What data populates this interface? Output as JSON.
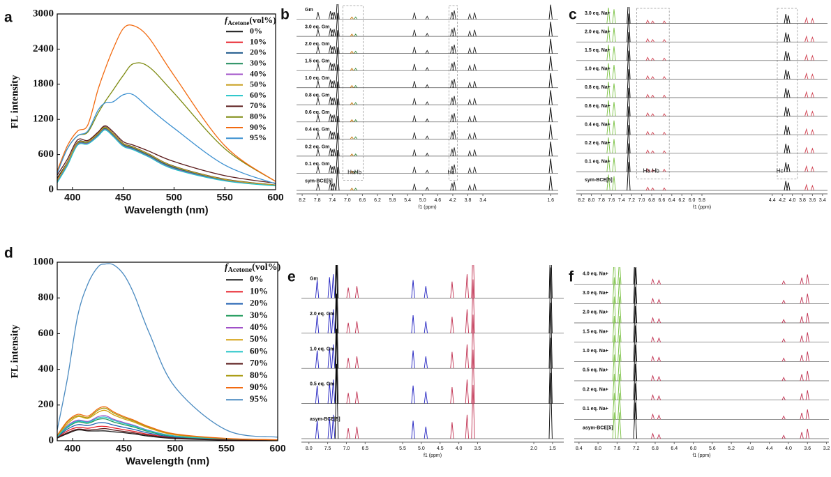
{
  "chart_data": [
    {
      "type": "line",
      "panel": "a",
      "xlabel": "Wavelength (nm)",
      "ylabel": "FL intensity",
      "legend_title": {
        "symbol": "f",
        "subscript": "Acetone",
        "unit": "(vol%)"
      },
      "x": [
        385,
        395,
        405,
        415,
        425,
        432,
        440,
        450,
        460,
        475,
        500,
        550,
        600
      ],
      "xlim": [
        385,
        600
      ],
      "xticks": [
        400,
        450,
        500,
        550,
        600
      ],
      "ylim": [
        0,
        3000
      ],
      "yticks": [
        0,
        600,
        1200,
        1800,
        2400,
        3000
      ],
      "series": [
        {
          "name": "0%",
          "color": "#1a1a1a",
          "values": [
            200,
            470,
            810,
            820,
            960,
            1070,
            960,
            790,
            730,
            610,
            400,
            180,
            80
          ]
        },
        {
          "name": "10%",
          "color": "#e8202a",
          "values": [
            170,
            450,
            800,
            810,
            950,
            1060,
            950,
            780,
            720,
            600,
            390,
            170,
            75
          ]
        },
        {
          "name": "20%",
          "color": "#1f5a8c",
          "values": [
            150,
            440,
            790,
            800,
            940,
            1050,
            940,
            770,
            710,
            590,
            380,
            165,
            72
          ]
        },
        {
          "name": "30%",
          "color": "#1f8a5a",
          "values": [
            140,
            430,
            780,
            800,
            930,
            1040,
            930,
            760,
            700,
            580,
            370,
            160,
            70
          ]
        },
        {
          "name": "40%",
          "color": "#a050c8",
          "values": [
            130,
            420,
            770,
            790,
            920,
            1030,
            920,
            750,
            690,
            570,
            360,
            155,
            68
          ]
        },
        {
          "name": "50%",
          "color": "#c8a020",
          "values": [
            160,
            460,
            800,
            815,
            955,
            1065,
            955,
            785,
            725,
            605,
            395,
            175,
            78
          ]
        },
        {
          "name": "60%",
          "color": "#22c4c8",
          "values": [
            120,
            410,
            760,
            780,
            910,
            1020,
            910,
            740,
            680,
            560,
            350,
            150,
            65
          ]
        },
        {
          "name": "70%",
          "color": "#5a1a1a",
          "values": [
            250,
            520,
            850,
            840,
            980,
            1090,
            990,
            820,
            760,
            660,
            480,
            240,
            110
          ]
        },
        {
          "name": "80%",
          "color": "#7d8a10",
          "values": [
            300,
            700,
            920,
            980,
            1300,
            1500,
            1700,
            1950,
            2150,
            2100,
            1650,
            700,
            140
          ]
        },
        {
          "name": "90%",
          "color": "#f26a10",
          "values": [
            320,
            750,
            1000,
            1100,
            1700,
            2050,
            2400,
            2750,
            2800,
            2600,
            1950,
            750,
            140
          ]
        },
        {
          "name": "95%",
          "color": "#3a8fd0",
          "values": [
            280,
            700,
            920,
            1000,
            1350,
            1480,
            1500,
            1620,
            1620,
            1400,
            1050,
            420,
            100
          ]
        }
      ]
    },
    {
      "type": "nmr",
      "panel": "b",
      "xlabel": "f1 (ppm)",
      "xlim": [
        8.35,
        1.4
      ],
      "xticks": [
        8.2,
        7.8,
        7.4,
        {
          "value": 7,
          "label": "7.0"
        },
        6.6,
        6.2,
        5.8,
        5.4,
        {
          "value": 5,
          "label": "5.0"
        },
        4.6,
        4.2,
        3.8,
        3.4,
        1.6
      ],
      "rows": [
        "Gm",
        "3.0 eq. Gm",
        "2.0 eq. Gm",
        "1.5 eq. Gm",
        "1.0 eq. Gm",
        "0.8 eq. Gm",
        "0.6 eq. Gm",
        "0.4 eq. Gm",
        "0.2 eq. Gm",
        "0.1 eq. Gm",
        "sym-BCE[5]"
      ],
      "peaks": [
        {
          "ppm": 7.78,
          "height": 0.5,
          "color": "#222222"
        },
        {
          "ppm": 7.45,
          "height": 0.55,
          "color": "#222222"
        },
        {
          "ppm": 7.4,
          "height": 0.45,
          "color": "#222222"
        },
        {
          "ppm": 7.35,
          "height": 0.5,
          "color": "#222222"
        },
        {
          "ppm": 7.26,
          "height": 1.6,
          "color": "#000000"
        },
        {
          "ppm": 6.88,
          "height": 0.15,
          "color": "#c07000"
        },
        {
          "ppm": 6.78,
          "height": 0.15,
          "color": "#3a8a3a"
        },
        {
          "ppm": 5.22,
          "height": 0.45,
          "color": "#222222"
        },
        {
          "ppm": 4.88,
          "height": 0.2,
          "color": "#222222"
        },
        {
          "ppm": 4.22,
          "height": 0.5,
          "color": "#222222"
        },
        {
          "ppm": 4.16,
          "height": 0.6,
          "color": "#222222"
        },
        {
          "ppm": 3.75,
          "height": 0.35,
          "color": "#222222"
        },
        {
          "ppm": 3.62,
          "height": 0.45,
          "color": "#222222"
        },
        {
          "ppm": 1.6,
          "height": 1.0,
          "color": "#000000"
        }
      ],
      "annotations": [
        {
          "text": "Ha",
          "ppm": 6.9
        },
        {
          "text": "Hb",
          "ppm": 6.72
        },
        {
          "text": "Hc",
          "ppm": 4.25
        }
      ],
      "boxes": [
        [
          7.12,
          6.58
        ],
        [
          4.3,
          4.08
        ]
      ]
    },
    {
      "type": "nmr",
      "panel": "c",
      "xlabel": "f1 (ppm)",
      "xlim": [
        8.3,
        3.3
      ],
      "xticks": [
        8.2,
        {
          "value": 8,
          "label": "8.0"
        },
        7.8,
        7.6,
        7.4,
        7.2,
        {
          "value": 7,
          "label": "7.0"
        },
        6.8,
        6.6,
        6.4,
        6.2,
        {
          "value": 6,
          "label": "6.0"
        },
        5.8,
        4.4,
        4.2,
        {
          "value": 4,
          "label": "4.0"
        },
        3.8,
        3.6,
        3.4
      ],
      "rows": [
        "3.0 eq. Na+",
        "2.0 eq. Na+",
        "1.5 eq. Na+",
        "1.0 eq. Na+",
        "0.8 eq. Na+",
        "0.6 eq. Na+",
        "0.4 eq. Na+",
        "0.2 eq. Na+",
        "0.1 eq. Na+",
        "sym-BCE[5]"
      ],
      "peaks": [
        {
          "ppm": 7.66,
          "height": 1.0,
          "color": "#7ac143"
        },
        {
          "ppm": 7.55,
          "height": 0.9,
          "color": "#7ac143"
        },
        {
          "ppm": 7.26,
          "height": 1.8,
          "color": "#000000"
        },
        {
          "ppm": 6.88,
          "height": 0.2,
          "color": "#d04050"
        },
        {
          "ppm": 6.78,
          "height": 0.15,
          "color": "#d04050"
        },
        {
          "ppm": 6.55,
          "height": 0.15,
          "color": "#d04050"
        },
        {
          "ppm": 4.13,
          "height": 0.6,
          "color": "#000000"
        },
        {
          "ppm": 4.08,
          "height": 0.5,
          "color": "#000000"
        },
        {
          "ppm": 3.72,
          "height": 0.35,
          "color": "#d04050"
        },
        {
          "ppm": 3.6,
          "height": 0.3,
          "color": "#d04050"
        }
      ],
      "annotations": [
        {
          "text": "Ha",
          "ppm": 6.9
        },
        {
          "text": "Hb",
          "ppm": 6.72
        },
        {
          "text": "Hc",
          "ppm": 4.25
        }
      ],
      "boxes": [
        [
          7.1,
          6.45
        ],
        [
          4.3,
          3.9
        ]
      ]
    },
    {
      "type": "line",
      "panel": "d",
      "xlabel": "Wavelength (nm)",
      "ylabel": "FL intensity",
      "legend_title": {
        "symbol": "f",
        "subscript": "Acetone",
        "unit": "(vol%)"
      },
      "x": [
        385,
        395,
        405,
        415,
        425,
        432,
        440,
        450,
        460,
        475,
        500,
        550,
        600
      ],
      "xlim": [
        385,
        600
      ],
      "xticks": [
        400,
        450,
        500,
        550,
        600
      ],
      "ylim": [
        0,
        1000
      ],
      "yticks": [
        0,
        200,
        400,
        600,
        800,
        1000
      ],
      "series": [
        {
          "name": "0%",
          "color": "#1a1a1a",
          "values": [
            15,
            40,
            60,
            55,
            55,
            55,
            50,
            45,
            38,
            25,
            12,
            4,
            2
          ]
        },
        {
          "name": "10%",
          "color": "#e8202a",
          "values": [
            18,
            55,
            75,
            70,
            80,
            80,
            72,
            62,
            52,
            35,
            17,
            6,
            3
          ]
        },
        {
          "name": "20%",
          "color": "#1f5fb0",
          "values": [
            20,
            65,
            90,
            85,
            100,
            100,
            88,
            75,
            63,
            42,
            20,
            7,
            3
          ]
        },
        {
          "name": "30%",
          "color": "#1f9a5a",
          "values": [
            22,
            75,
            105,
            98,
            120,
            122,
            105,
            90,
            76,
            50,
            24,
            8,
            4
          ]
        },
        {
          "name": "40%",
          "color": "#a050c8",
          "values": [
            24,
            85,
            115,
            108,
            135,
            140,
            120,
            102,
            86,
            57,
            27,
            9,
            4
          ]
        },
        {
          "name": "50%",
          "color": "#d4a010",
          "values": [
            26,
            95,
            135,
            125,
            160,
            170,
            145,
            122,
            104,
            70,
            33,
            11,
            5
          ]
        },
        {
          "name": "60%",
          "color": "#22c4c8",
          "values": [
            23,
            80,
            110,
            104,
            128,
            132,
            114,
            97,
            82,
            55,
            26,
            9,
            4
          ]
        },
        {
          "name": "70%",
          "color": "#5a1a1a",
          "values": [
            17,
            45,
            65,
            60,
            65,
            68,
            60,
            52,
            44,
            30,
            15,
            5,
            2
          ]
        },
        {
          "name": "80%",
          "color": "#a89a10",
          "values": [
            28,
            105,
            140,
            130,
            172,
            182,
            155,
            130,
            110,
            75,
            36,
            12,
            5
          ]
        },
        {
          "name": "90%",
          "color": "#f26a10",
          "values": [
            30,
            110,
            148,
            138,
            180,
            190,
            162,
            136,
            115,
            78,
            38,
            13,
            5
          ]
        },
        {
          "name": "95%",
          "color": "#4a8ac0",
          "values": [
            60,
            350,
            700,
            880,
            975,
            990,
            985,
            930,
            820,
            600,
            300,
            60,
            20
          ]
        }
      ]
    },
    {
      "type": "nmr",
      "panel": "e",
      "xlabel": "f1 (ppm)",
      "xlim": [
        8.2,
        1.2
      ],
      "xticks": [
        {
          "value": 8,
          "label": "8.0"
        },
        7.5,
        {
          "value": 7,
          "label": "7.0"
        },
        6.5,
        5.5,
        {
          "value": 5,
          "label": "5.0"
        },
        4.5,
        {
          "value": 4,
          "label": "4.0"
        },
        3.5,
        {
          "value": 2,
          "label": "2.0"
        },
        1.5
      ],
      "rows": [
        "Gm",
        "2.0 eq. Gm",
        "1.0 eq. Gm",
        "0.5 eq. Gm",
        "asym-BCE[5]"
      ],
      "peaks": [
        {
          "ppm": 7.78,
          "height": 0.6,
          "color": "#2020c0"
        },
        {
          "ppm": 7.45,
          "height": 0.7,
          "color": "#2020c0"
        },
        {
          "ppm": 7.35,
          "height": 0.8,
          "color": "#2020c0"
        },
        {
          "ppm": 7.26,
          "height": 2.5,
          "color": "#000000"
        },
        {
          "ppm": 6.95,
          "height": 0.35,
          "color": "#c03050"
        },
        {
          "ppm": 6.72,
          "height": 0.4,
          "color": "#c03050"
        },
        {
          "ppm": 5.22,
          "height": 0.6,
          "color": "#2020c0"
        },
        {
          "ppm": 4.88,
          "height": 0.4,
          "color": "#2020c0"
        },
        {
          "ppm": 4.18,
          "height": 0.55,
          "color": "#c03050"
        },
        {
          "ppm": 3.78,
          "height": 0.8,
          "color": "#c03050"
        },
        {
          "ppm": 3.62,
          "height": 1.8,
          "color": "#c03050"
        },
        {
          "ppm": 1.55,
          "height": 2.2,
          "color": "#000000"
        }
      ]
    },
    {
      "type": "nmr",
      "panel": "f",
      "xlabel": "f1 (ppm)",
      "xlim": [
        8.5,
        3.15
      ],
      "xticks": [
        8.4,
        {
          "value": 8,
          "label": "8.0"
        },
        7.6,
        7.2,
        6.8,
        6.4,
        {
          "value": 6,
          "label": "6.0"
        },
        5.6,
        5.2,
        4.8,
        4.4,
        {
          "value": 4,
          "label": "4.0"
        },
        3.6,
        3.2
      ],
      "rows": [
        "4.0 eq. Na+",
        "3.0 eq. Na+",
        "2.0 eq. Na+",
        "1.5 eq. Na+",
        "1.0 eq. Na+",
        "0.5 eq. Na+",
        "0.2 eq. Na+",
        "0.1 eq. Na+",
        "asym-BCE[5]"
      ],
      "peaks": [
        {
          "ppm": 7.66,
          "height": 1.6,
          "color": "#7ac143"
        },
        {
          "ppm": 7.55,
          "height": 1.6,
          "color": "#7ac143"
        },
        {
          "ppm": 7.22,
          "height": 2.2,
          "color": "#000000"
        },
        {
          "ppm": 6.85,
          "height": 0.3,
          "color": "#c03050"
        },
        {
          "ppm": 6.72,
          "height": 0.25,
          "color": "#c03050"
        },
        {
          "ppm": 4.1,
          "height": 0.2,
          "color": "#c03050"
        },
        {
          "ppm": 3.72,
          "height": 0.4,
          "color": "#c03050"
        },
        {
          "ppm": 3.6,
          "height": 0.6,
          "color": "#c03050"
        }
      ]
    }
  ]
}
